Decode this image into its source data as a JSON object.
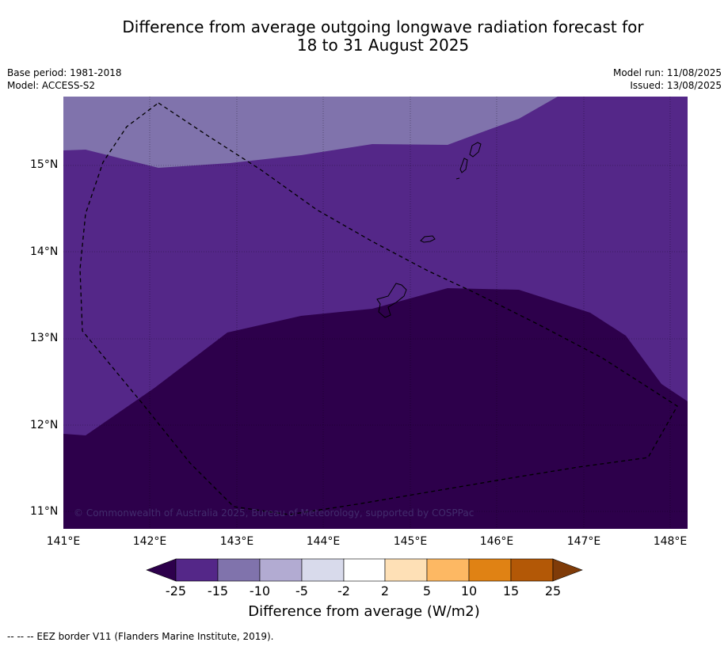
{
  "title": {
    "line1": "Difference from average outgoing longwave radiation forecast for",
    "line2": "18 to 31 August 2025"
  },
  "meta_left": {
    "base_period": "Base period: 1981-2018",
    "model": "Model: ACCESS-S2"
  },
  "meta_right": {
    "model_run": "Model run: 11/08/2025",
    "issued": "Issued: 13/08/2025"
  },
  "map": {
    "lon_range": [
      141,
      148.2
    ],
    "lat_range": [
      10.8,
      15.8
    ],
    "lat_ticks": [
      {
        "value": 15,
        "label": "15°N"
      },
      {
        "value": 14,
        "label": "14°N"
      },
      {
        "value": 13,
        "label": "13°N"
      },
      {
        "value": 12,
        "label": "12°N"
      },
      {
        "value": 11,
        "label": "11°N"
      }
    ],
    "lon_ticks": [
      {
        "value": 141,
        "label": "141°E"
      },
      {
        "value": 142,
        "label": "142°E"
      },
      {
        "value": 143,
        "label": "143°E"
      },
      {
        "value": 144,
        "label": "144°E"
      },
      {
        "value": 145,
        "label": "145°E"
      },
      {
        "value": 146,
        "label": "146°E"
      },
      {
        "value": 147,
        "label": "147°E"
      },
      {
        "value": 148,
        "label": "148°E"
      }
    ],
    "copyright": "© Commonwealth of Australia 2025, Bureau of Meteorology, supported by COSPPac"
  },
  "colors": {
    "band_-25_below": "#2d004b",
    "band_-25_-15": "#542788",
    "band_-15_-10": "#8073ac",
    "band_-10_-5": "#b2abd2",
    "band_-5_-2": "#d8daeb",
    "band_-2_2": "#ffffff",
    "band_2_5": "#fee0b6",
    "band_5_10": "#fdb863",
    "band_10_15": "#e08214",
    "band_15_25": "#b35806",
    "band_25_above": "#7f3b08"
  },
  "colorbar": {
    "labels": [
      "-25",
      "-15",
      "-10",
      "-5",
      "-2",
      "2",
      "5",
      "10",
      "15",
      "25"
    ],
    "title": "Difference from average (W/m2)"
  },
  "footnote": "--  --  -- EEZ border V11 (Flanders Marine Institute, 2019)."
}
